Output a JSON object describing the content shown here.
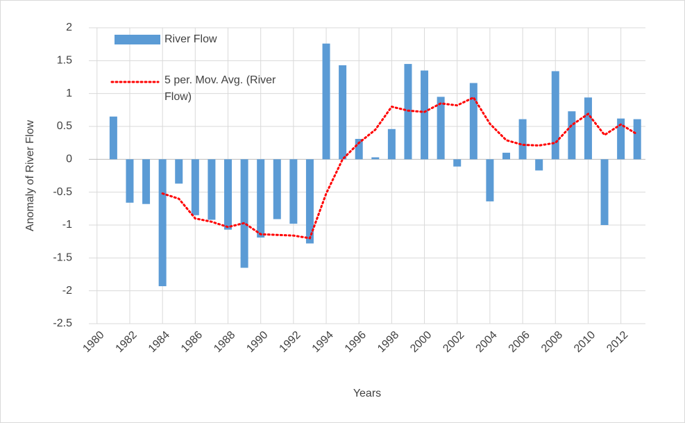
{
  "chart_data": {
    "type": "bar",
    "x_label": "Years",
    "y_label": "Anomaly of River Flow",
    "x": [
      1981,
      1982,
      1983,
      1984,
      1985,
      1986,
      1987,
      1988,
      1989,
      1990,
      1991,
      1992,
      1993,
      1994,
      1995,
      1996,
      1997,
      1998,
      1999,
      2000,
      2001,
      2002,
      2003,
      2004,
      2005,
      2006,
      2007,
      2008,
      2009,
      2010,
      2011,
      2012,
      2013
    ],
    "series": [
      {
        "name": "River Flow",
        "type": "bar",
        "color": "#5b9bd5",
        "values": [
          0.65,
          -0.66,
          -0.68,
          -1.93,
          -0.37,
          -0.85,
          -0.92,
          -1.07,
          -1.65,
          -1.19,
          -0.91,
          -0.98,
          -1.28,
          1.76,
          1.43,
          0.31,
          0.03,
          0.46,
          1.45,
          1.35,
          0.95,
          -0.11,
          1.16,
          -0.64,
          0.1,
          0.61,
          -0.17,
          1.34,
          0.73,
          0.94,
          -1.0,
          0.62,
          0.61
        ]
      },
      {
        "name": "5 per. Mov. Avg. (River Flow)",
        "type": "line",
        "color": "#ff0000",
        "x": [
          1984,
          1985,
          1986,
          1987,
          1988,
          1989,
          1990,
          1991,
          1992,
          1993,
          1994,
          1995,
          1996,
          1997,
          1998,
          1999,
          2000,
          2001,
          2002,
          2003,
          2004,
          2005,
          2006,
          2007,
          2008,
          2009,
          2010,
          2011,
          2012,
          2013
        ],
        "values": [
          -0.52,
          -0.6,
          -0.9,
          -0.95,
          -1.03,
          -0.97,
          -1.14,
          -1.15,
          -1.16,
          -1.2,
          -0.52,
          0,
          0.25,
          0.45,
          0.8,
          0.74,
          0.72,
          0.85,
          0.82,
          0.94,
          0.54,
          0.29,
          0.22,
          0.21,
          0.25,
          0.52,
          0.69,
          0.37,
          0.53,
          0.38
        ]
      }
    ],
    "xlim": [
      1979.5,
      2013.5
    ],
    "xticks": [
      1980,
      1982,
      1984,
      1986,
      1988,
      1990,
      1992,
      1994,
      1996,
      1998,
      2000,
      2002,
      2004,
      2006,
      2008,
      2010,
      2012
    ],
    "ylim": [
      -2.5,
      2
    ],
    "yticks": [
      2,
      1.5,
      1,
      0.5,
      0,
      -0.5,
      -1,
      -1.5,
      -2,
      -2.5
    ],
    "grid": true,
    "legend": "top-left"
  }
}
